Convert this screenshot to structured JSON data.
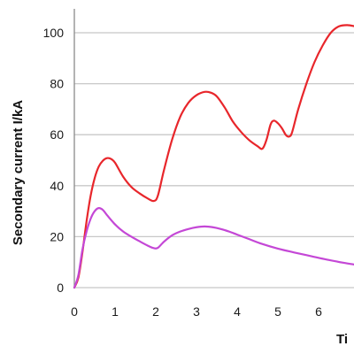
{
  "chart_data": {
    "type": "line",
    "ylabel": "Secondary current I/kA",
    "xlabel": "Ti",
    "xlim": [
      0,
      6.9
    ],
    "ylim": [
      0,
      100
    ],
    "x_ticks": [
      0,
      1,
      2,
      3,
      4,
      5,
      6
    ],
    "y_ticks": [
      0,
      20,
      40,
      60,
      80,
      100
    ],
    "grid": "horizontal",
    "series": [
      {
        "color": "#e8262b",
        "points": [
          [
            0,
            0
          ],
          [
            0.1,
            4
          ],
          [
            0.2,
            14
          ],
          [
            0.3,
            26
          ],
          [
            0.4,
            36
          ],
          [
            0.5,
            43
          ],
          [
            0.6,
            47.5
          ],
          [
            0.7,
            49.8
          ],
          [
            0.8,
            50.8
          ],
          [
            0.9,
            50.5
          ],
          [
            1.0,
            49
          ],
          [
            1.2,
            43.5
          ],
          [
            1.4,
            39.5
          ],
          [
            1.6,
            37
          ],
          [
            1.8,
            35
          ],
          [
            1.95,
            34
          ],
          [
            2.05,
            36
          ],
          [
            2.2,
            46
          ],
          [
            2.4,
            58
          ],
          [
            2.6,
            67
          ],
          [
            2.8,
            72.5
          ],
          [
            3.0,
            75.5
          ],
          [
            3.2,
            76.8
          ],
          [
            3.35,
            76.5
          ],
          [
            3.5,
            75
          ],
          [
            3.7,
            70.5
          ],
          [
            3.9,
            65
          ],
          [
            4.1,
            61
          ],
          [
            4.3,
            57.8
          ],
          [
            4.5,
            55.5
          ],
          [
            4.62,
            54.5
          ],
          [
            4.72,
            58
          ],
          [
            4.82,
            64
          ],
          [
            4.9,
            65.5
          ],
          [
            5.0,
            64.5
          ],
          [
            5.1,
            62.5
          ],
          [
            5.2,
            59.8
          ],
          [
            5.28,
            59.3
          ],
          [
            5.35,
            61
          ],
          [
            5.5,
            70
          ],
          [
            5.7,
            80
          ],
          [
            5.9,
            88.5
          ],
          [
            6.1,
            95
          ],
          [
            6.3,
            100
          ],
          [
            6.5,
            102.5
          ],
          [
            6.7,
            103
          ],
          [
            6.9,
            102.5
          ]
        ]
      },
      {
        "color": "#c447d6",
        "points": [
          [
            0,
            0
          ],
          [
            0.1,
            5
          ],
          [
            0.2,
            15
          ],
          [
            0.3,
            22
          ],
          [
            0.4,
            27
          ],
          [
            0.5,
            30
          ],
          [
            0.6,
            31.2
          ],
          [
            0.7,
            30.5
          ],
          [
            0.8,
            28.5
          ],
          [
            1.0,
            24.8
          ],
          [
            1.2,
            22
          ],
          [
            1.4,
            20
          ],
          [
            1.6,
            18.2
          ],
          [
            1.8,
            16.5
          ],
          [
            1.95,
            15.5
          ],
          [
            2.05,
            15.6
          ],
          [
            2.2,
            18
          ],
          [
            2.4,
            20.5
          ],
          [
            2.6,
            22
          ],
          [
            2.8,
            23
          ],
          [
            3.0,
            23.7
          ],
          [
            3.2,
            24
          ],
          [
            3.4,
            23.7
          ],
          [
            3.6,
            23
          ],
          [
            3.8,
            22
          ],
          [
            4.0,
            20.8
          ],
          [
            4.3,
            19
          ],
          [
            4.6,
            17.2
          ],
          [
            5.0,
            15.3
          ],
          [
            5.4,
            13.8
          ],
          [
            5.8,
            12.4
          ],
          [
            6.2,
            11
          ],
          [
            6.6,
            9.8
          ],
          [
            6.9,
            9
          ]
        ]
      }
    ]
  }
}
